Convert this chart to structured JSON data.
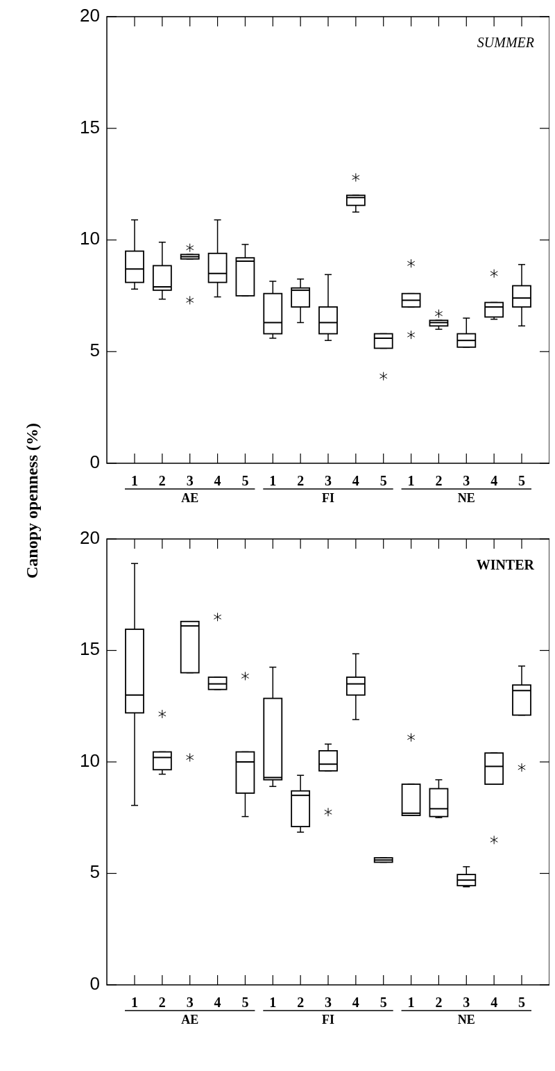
{
  "chart_data": [
    {
      "type": "box",
      "title": "SUMMER",
      "ylabel": "Canopy openness (%)",
      "categories": [
        "1",
        "2",
        "3",
        "4",
        "5",
        "1",
        "2",
        "3",
        "4",
        "5",
        "1",
        "2",
        "3",
        "4",
        "5"
      ],
      "annotations": [
        "AE",
        "FI",
        "NE"
      ],
      "ylim": [
        0,
        20
      ],
      "yticks": [
        0,
        5,
        10,
        15,
        20
      ],
      "color": "#000000",
      "boxes": [
        {
          "low": 7.8,
          "q1": 8.1,
          "median": 8.7,
          "q3": 9.5,
          "high": 10.9
        },
        {
          "low": 7.35,
          "q1": 7.75,
          "median": 7.9,
          "q3": 8.85,
          "high": 9.9
        },
        {
          "low": 9.15,
          "q1": 9.15,
          "median": 9.25,
          "q3": 9.35,
          "high": 9.35,
          "outliers": [
            9.65,
            7.3
          ]
        },
        {
          "low": 7.45,
          "q1": 8.1,
          "median": 8.5,
          "q3": 9.4,
          "high": 10.9
        },
        {
          "low": 7.5,
          "q1": 7.5,
          "median": 9.05,
          "q3": 9.2,
          "high": 9.8
        },
        {
          "low": 5.6,
          "q1": 5.8,
          "median": 6.3,
          "q3": 7.6,
          "high": 8.15
        },
        {
          "low": 6.3,
          "q1": 7.0,
          "median": 7.75,
          "q3": 7.85,
          "high": 8.25
        },
        {
          "low": 5.5,
          "q1": 5.8,
          "median": 6.3,
          "q3": 7.0,
          "high": 8.45
        },
        {
          "low": 11.25,
          "q1": 11.55,
          "median": 11.9,
          "q3": 12.0,
          "high": 12.0,
          "outliers": [
            12.8
          ]
        },
        {
          "low": 5.15,
          "q1": 5.15,
          "median": 5.6,
          "q3": 5.8,
          "high": 5.8,
          "outliers": [
            3.9
          ]
        },
        {
          "low": 7.0,
          "q1": 7.0,
          "median": 7.3,
          "q3": 7.6,
          "high": 7.6,
          "outliers": [
            8.95,
            5.75
          ]
        },
        {
          "low": 6.0,
          "q1": 6.15,
          "median": 6.3,
          "q3": 6.4,
          "high": 6.4,
          "outliers": [
            6.7
          ]
        },
        {
          "low": 5.2,
          "q1": 5.2,
          "median": 5.5,
          "q3": 5.8,
          "high": 6.5
        },
        {
          "low": 6.45,
          "q1": 6.55,
          "median": 7.0,
          "q3": 7.2,
          "high": 7.2,
          "outliers": [
            8.5
          ]
        },
        {
          "low": 6.15,
          "q1": 7.0,
          "median": 7.4,
          "q3": 7.95,
          "high": 8.9
        }
      ]
    },
    {
      "type": "box",
      "title": "WINTER",
      "categories": [
        "1",
        "2",
        "3",
        "4",
        "5",
        "1",
        "2",
        "3",
        "4",
        "5",
        "1",
        "2",
        "3",
        "4",
        "5"
      ],
      "annotations": [
        "AE",
        "FI",
        "NE"
      ],
      "ylim": [
        0,
        20
      ],
      "yticks": [
        0,
        5,
        10,
        15,
        20
      ],
      "color": "#000000",
      "boxes": [
        {
          "low": 8.05,
          "q1": 12.2,
          "median": 13.0,
          "q3": 15.95,
          "high": 18.9
        },
        {
          "low": 9.45,
          "q1": 9.65,
          "median": 10.2,
          "q3": 10.45,
          "high": 10.45,
          "outliers": [
            12.15
          ]
        },
        {
          "low": 14.0,
          "q1": 14.0,
          "median": 16.1,
          "q3": 16.3,
          "high": 16.3,
          "outliers": [
            10.2
          ]
        },
        {
          "low": 13.25,
          "q1": 13.25,
          "median": 13.5,
          "q3": 13.8,
          "high": 13.8,
          "outliers": [
            16.5
          ]
        },
        {
          "low": 7.55,
          "q1": 8.6,
          "median": 10.0,
          "q3": 10.45,
          "high": 10.45,
          "outliers": [
            13.85
          ]
        },
        {
          "low": 8.9,
          "q1": 9.2,
          "median": 9.3,
          "q3": 12.85,
          "high": 14.25
        },
        {
          "low": 6.85,
          "q1": 7.1,
          "median": 8.5,
          "q3": 8.7,
          "high": 9.4
        },
        {
          "low": 9.6,
          "q1": 9.6,
          "median": 9.9,
          "q3": 10.5,
          "high": 10.8,
          "outliers": [
            7.75
          ]
        },
        {
          "low": 11.9,
          "q1": 13.0,
          "median": 13.5,
          "q3": 13.8,
          "high": 14.85
        },
        {
          "low": 5.5,
          "q1": 5.5,
          "median": 5.6,
          "q3": 5.7,
          "high": 5.7
        },
        {
          "low": 7.6,
          "q1": 7.6,
          "median": 7.7,
          "q3": 9.0,
          "high": 9.0,
          "outliers": [
            11.1
          ]
        },
        {
          "low": 7.5,
          "q1": 7.55,
          "median": 7.9,
          "q3": 8.8,
          "high": 9.2
        },
        {
          "low": 4.4,
          "q1": 4.45,
          "median": 4.7,
          "q3": 4.95,
          "high": 5.3
        },
        {
          "low": 9.0,
          "q1": 9.0,
          "median": 9.8,
          "q3": 10.4,
          "high": 10.4,
          "outliers": [
            6.5
          ]
        },
        {
          "low": 12.1,
          "q1": 12.1,
          "median": 13.2,
          "q3": 13.45,
          "high": 14.3,
          "outliers": [
            9.75
          ]
        }
      ]
    }
  ]
}
